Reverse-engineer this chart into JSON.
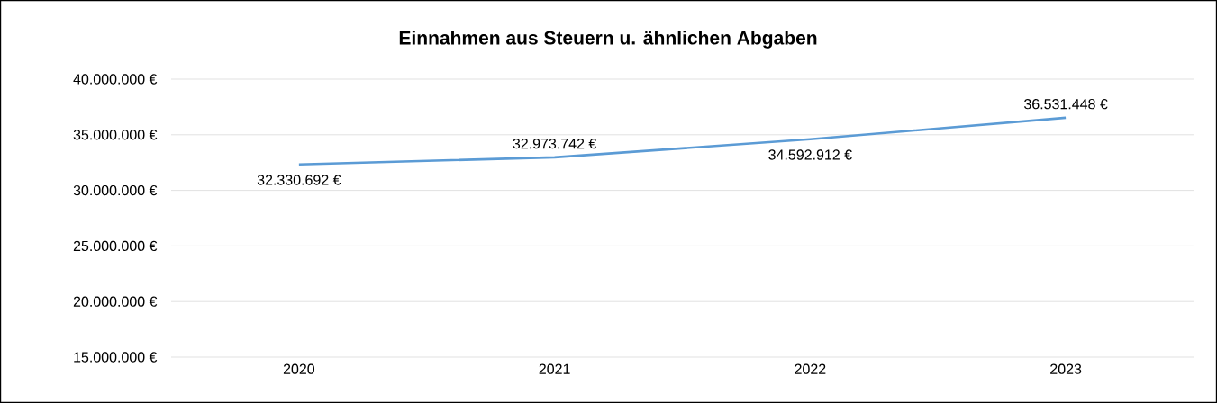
{
  "chart_data": {
    "type": "line",
    "title": "Einnahmen aus Steuern u. ähnlichen Abgaben",
    "categories": [
      "2020",
      "2021",
      "2022",
      "2023"
    ],
    "values": [
      32330692,
      32973742,
      34592912,
      36531448
    ],
    "value_labels": [
      "32.330.692 €",
      "32.973.742 €",
      "34.592.912 €",
      "36.531.448 €"
    ],
    "color": "#5b9bd5",
    "ylim": [
      15000000,
      40000000
    ],
    "yticks": [
      {
        "value": 15000000,
        "label": "15.000.000 €"
      },
      {
        "value": 20000000,
        "label": "20.000.000 €"
      },
      {
        "value": 25000000,
        "label": "25.000.000 €"
      },
      {
        "value": 30000000,
        "label": "30.000.000 €"
      },
      {
        "value": 35000000,
        "label": "35.000.000 €"
      },
      {
        "value": 40000000,
        "label": "40.000.000 €"
      }
    ],
    "grid": "y",
    "marker": "none",
    "line_style": "solid"
  }
}
